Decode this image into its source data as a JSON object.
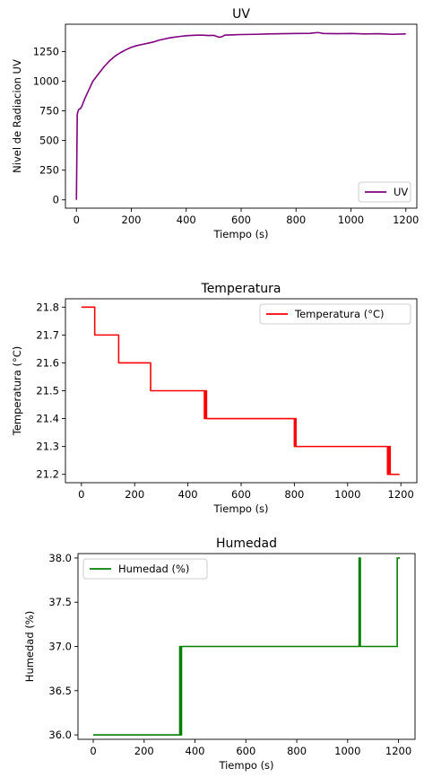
{
  "chart_data": [
    {
      "type": "line",
      "title": "UV",
      "xlabel": "Tiempo (s)",
      "ylabel": "Nivel de Radiacion UV",
      "xlim": [
        -40,
        1240
      ],
      "ylim": [
        -70,
        1480
      ],
      "xticks": [
        0,
        200,
        400,
        600,
        800,
        1000,
        1200
      ],
      "yticks": [
        0,
        250,
        500,
        750,
        1000,
        1250
      ],
      "legend": "lower-right",
      "grid": false,
      "series": [
        {
          "name": "UV",
          "color": "#800080",
          "x": [
            0,
            3,
            5,
            8,
            15,
            20,
            30,
            40,
            50,
            60,
            70,
            80,
            90,
            100,
            120,
            140,
            160,
            180,
            200,
            220,
            240,
            260,
            280,
            300,
            320,
            340,
            360,
            380,
            400,
            420,
            440,
            460,
            480,
            500,
            520,
            530,
            540,
            560,
            580,
            600,
            650,
            700,
            750,
            800,
            850,
            880,
            900,
            950,
            1000,
            1050,
            1100,
            1150,
            1200
          ],
          "y": [
            0,
            720,
            740,
            760,
            770,
            790,
            850,
            900,
            950,
            1000,
            1030,
            1060,
            1090,
            1120,
            1170,
            1210,
            1240,
            1265,
            1285,
            1300,
            1310,
            1320,
            1330,
            1345,
            1355,
            1365,
            1372,
            1378,
            1383,
            1386,
            1388,
            1388,
            1385,
            1386,
            1370,
            1375,
            1388,
            1390,
            1392,
            1393,
            1395,
            1398,
            1400,
            1402,
            1403,
            1410,
            1402,
            1400,
            1402,
            1398,
            1400,
            1395,
            1398
          ]
        }
      ]
    },
    {
      "type": "line",
      "title": "Temperatura",
      "xlabel": "Tiempo (s)",
      "ylabel": "Temperatura (°C)",
      "xlim": [
        -60,
        1260
      ],
      "ylim": [
        21.17,
        21.83
      ],
      "xticks": [
        0,
        200,
        400,
        600,
        800,
        1000,
        1200
      ],
      "yticks": [
        21.2,
        21.3,
        21.4,
        21.5,
        21.6,
        21.7,
        21.8
      ],
      "legend": "upper-right",
      "grid": false,
      "series": [
        {
          "name": "Temperatura (°C)",
          "color": "#ff0000",
          "x": [
            0,
            50,
            50,
            140,
            140,
            260,
            260,
            462,
            462,
            465,
            465,
            470,
            470,
            472,
            472,
            800,
            800,
            803,
            803,
            806,
            806,
            810,
            810,
            1150,
            1150,
            1155,
            1155,
            1160,
            1160,
            1195
          ],
          "y": [
            21.8,
            21.8,
            21.7,
            21.7,
            21.6,
            21.6,
            21.5,
            21.5,
            21.4,
            21.4,
            21.5,
            21.5,
            21.4,
            21.4,
            21.4,
            21.4,
            21.3,
            21.3,
            21.4,
            21.4,
            21.3,
            21.3,
            21.3,
            21.3,
            21.2,
            21.2,
            21.3,
            21.3,
            21.2,
            21.2
          ]
        }
      ]
    },
    {
      "type": "line",
      "title": "Humedad",
      "xlabel": "Tiempo (s)",
      "ylabel": "Humedad (%)",
      "xlim": [
        -60,
        1265
      ],
      "ylim": [
        35.95,
        38.05
      ],
      "xticks": [
        0,
        200,
        400,
        600,
        800,
        1000,
        1200
      ],
      "yticks": [
        36.0,
        36.5,
        37.0,
        37.5,
        38.0
      ],
      "legend": "upper-left",
      "grid": false,
      "series": [
        {
          "name": "Humedad (%)",
          "color": "#008000",
          "x": [
            0,
            340,
            340,
            343,
            343,
            347,
            347,
            1045,
            1045,
            1050,
            1050,
            1057,
            1057,
            1195,
            1195,
            1205
          ],
          "y": [
            36.0,
            36.0,
            37.0,
            37.0,
            36.0,
            36.0,
            37.0,
            37.0,
            38.0,
            38.0,
            37.0,
            37.0,
            37.0,
            37.0,
            38.0,
            38.0
          ]
        }
      ]
    }
  ]
}
